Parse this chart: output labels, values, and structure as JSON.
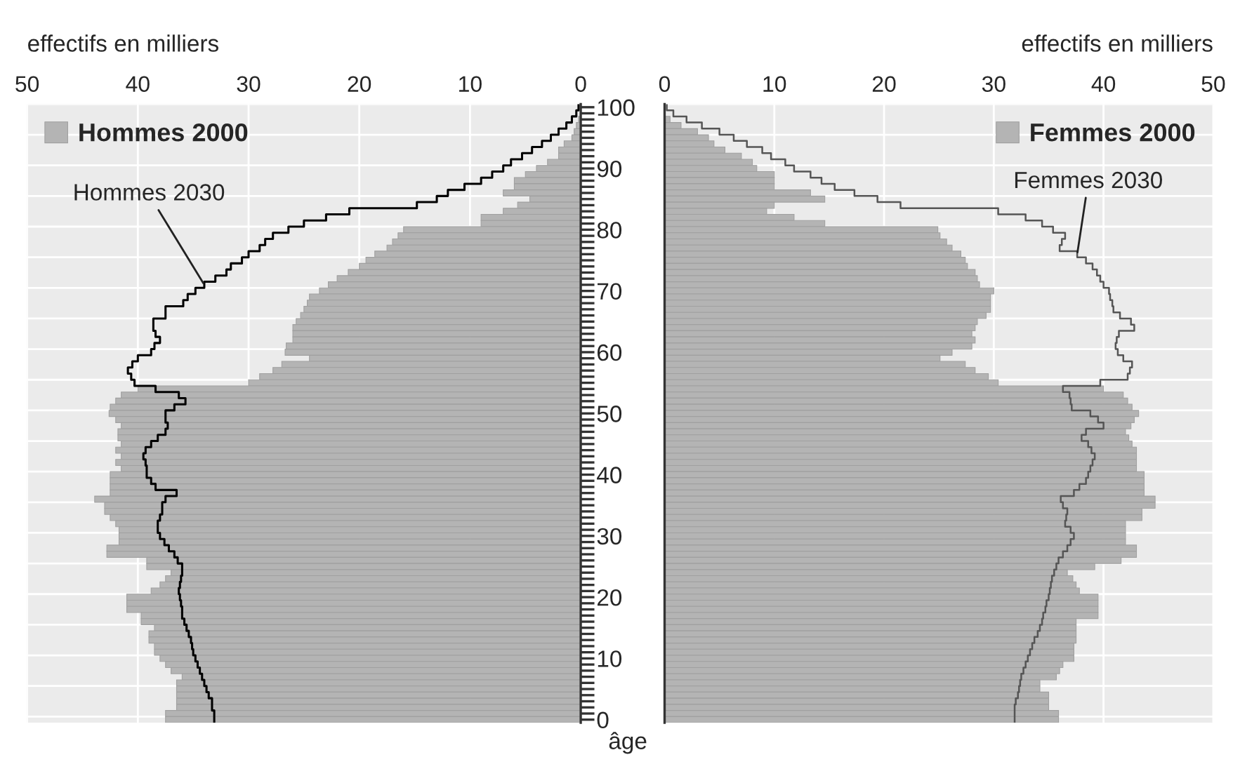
{
  "chart_data": [
    {
      "type": "bar",
      "orientation": "horizontal",
      "xlabel": "effectifs en milliers",
      "ylabel": "âge",
      "categories": [
        "100",
        null,
        null,
        null,
        null,
        null,
        null,
        null,
        null,
        null,
        "90",
        null,
        null,
        null,
        null,
        null,
        null,
        null,
        null,
        null,
        "80",
        null,
        null,
        null,
        null,
        null,
        null,
        null,
        null,
        null,
        "70",
        null,
        null,
        null,
        null,
        null,
        null,
        null,
        null,
        null,
        "60",
        null,
        null,
        null,
        null,
        null,
        null,
        null,
        null,
        null,
        "50",
        null,
        null,
        null,
        null,
        null,
        null,
        null,
        null,
        null,
        "40",
        null,
        null,
        null,
        null,
        null,
        null,
        null,
        null,
        null,
        "30",
        null,
        null,
        null,
        null,
        null,
        null,
        null,
        null,
        null,
        "20",
        null,
        null,
        null,
        null,
        null,
        null,
        null,
        null,
        null,
        "10",
        null,
        null,
        null,
        null,
        null,
        null,
        null,
        null,
        null,
        "0"
      ],
      "series": [
        {
          "name": "Hommes 2000",
          "type": "bar",
          "color": "#b4b4b4",
          "values": [
            null,
            null,
            0.2,
            0.4,
            0.6,
            0.8,
            1.5,
            2,
            2,
            3,
            4,
            5,
            6,
            6,
            7,
            4.6,
            5.7,
            7,
            9,
            9,
            16,
            16.5,
            17,
            17.5,
            18.6,
            19.4,
            20,
            21,
            22,
            22.8,
            23.6,
            24.5,
            24.7,
            25,
            25.3,
            25.7,
            26,
            26,
            26,
            26.6,
            26.7,
            24.5,
            27,
            27.8,
            29,
            30,
            40,
            41.5,
            42,
            42.5,
            42.6,
            42,
            41.5,
            41.8,
            41.8,
            41.5,
            42,
            41.5,
            42,
            41.5,
            42.5,
            42.5,
            42.5,
            42.5,
            43.9,
            43,
            43,
            42.5,
            42,
            41.7,
            41.7,
            41.7,
            42.8,
            42.8,
            39.2,
            39.2,
            37,
            37.5,
            38,
            38.8,
            41,
            41,
            41,
            39.7,
            39.7,
            38.5,
            39,
            39,
            38.5,
            38.5,
            38,
            37.5,
            37,
            36,
            36.5,
            36.5,
            36.5,
            36.5,
            36.5,
            37.5,
            37.5
          ]
        },
        {
          "name": "Hommes 2030",
          "type": "step",
          "color": "#000000",
          "values": [
            0.2,
            0.4,
            0.8,
            1.3,
            2,
            2.7,
            3.5,
            4.4,
            5.3,
            6.3,
            7,
            8,
            9,
            10.5,
            12,
            13,
            14.8,
            20.9,
            23,
            25,
            26.4,
            27.8,
            28.5,
            29,
            30,
            30.6,
            31.6,
            32,
            33,
            34,
            34.8,
            35.5,
            35.9,
            37.5,
            37.5,
            38.6,
            38.6,
            38.4,
            38,
            38.5,
            38.8,
            40,
            40.5,
            40.9,
            40.6,
            40.3,
            38.4,
            36.3,
            35.7,
            36.7,
            37.5,
            37.5,
            37.3,
            37.5,
            38.2,
            38.8,
            39.3,
            39.5,
            39.3,
            39.2,
            39.2,
            38.8,
            38.4,
            36.5,
            37.5,
            37.8,
            37.8,
            38,
            38.2,
            38.2,
            38,
            37.6,
            37.2,
            36.7,
            36.4,
            36,
            36,
            36.1,
            36.2,
            36.3,
            36.2,
            36.1,
            36,
            36,
            35.8,
            35.6,
            35.4,
            35.2,
            35.1,
            35,
            34.8,
            34.6,
            34.4,
            34.2,
            34,
            33.8,
            33.6,
            33.3,
            33.3,
            33.1,
            33.1
          ]
        }
      ],
      "xlim": [
        50,
        0
      ],
      "xticks": [
        50,
        40,
        30,
        20,
        10,
        0
      ],
      "grid": true,
      "legend": "top left"
    },
    {
      "type": "bar",
      "orientation": "horizontal",
      "xlabel": "effectifs en milliers",
      "categories": [
        "100",
        null,
        null,
        null,
        null,
        null,
        null,
        null,
        null,
        null,
        "90",
        null,
        null,
        null,
        null,
        null,
        null,
        null,
        null,
        null,
        "80",
        null,
        null,
        null,
        null,
        null,
        null,
        null,
        null,
        null,
        "70",
        null,
        null,
        null,
        null,
        null,
        null,
        null,
        null,
        null,
        "60",
        null,
        null,
        null,
        null,
        null,
        null,
        null,
        null,
        null,
        "50",
        null,
        null,
        null,
        null,
        null,
        null,
        null,
        null,
        null,
        "40",
        null,
        null,
        null,
        null,
        null,
        null,
        null,
        null,
        null,
        "30",
        null,
        null,
        null,
        null,
        null,
        null,
        null,
        null,
        null,
        "20",
        null,
        null,
        null,
        null,
        null,
        null,
        null,
        null,
        null,
        "10",
        null,
        null,
        null,
        null,
        null,
        null,
        null,
        null,
        null,
        "0"
      ],
      "series": [
        {
          "name": "Femmes 2000",
          "type": "bar",
          "color": "#b4b4b4",
          "values": [
            null,
            null,
            0.5,
            1.5,
            3,
            4,
            4.5,
            5.5,
            7,
            8,
            8.4,
            10,
            10,
            10,
            13.3,
            14.6,
            10,
            9.3,
            11.8,
            14.6,
            24.9,
            25.1,
            25.7,
            26.2,
            27,
            27.4,
            27.6,
            28.3,
            28.5,
            28.7,
            30,
            29.7,
            29.7,
            29.7,
            29.3,
            28.5,
            28.3,
            28,
            28.3,
            28,
            26.2,
            25.1,
            27.4,
            28.3,
            29.5,
            30.4,
            40,
            41.8,
            42.2,
            42.6,
            43.2,
            42.8,
            42.5,
            42,
            42.3,
            42.6,
            43,
            43,
            43,
            43,
            43.7,
            43.7,
            43.7,
            43.7,
            44.7,
            44.7,
            43.5,
            43.5,
            42,
            42,
            42,
            42,
            43,
            43,
            41.6,
            39.2,
            36.7,
            37.2,
            37.5,
            37.8,
            39.5,
            39.5,
            39.5,
            39.5,
            37.5,
            37.5,
            37.5,
            37.5,
            37.3,
            37.3,
            37.3,
            36.3,
            36,
            35.7,
            34.2,
            34.2,
            35,
            35,
            35,
            35.9,
            35.9
          ]
        },
        {
          "name": "Femmes 2030",
          "type": "step",
          "color": "#555555",
          "values": [
            0.2,
            0.8,
            2,
            3.4,
            5,
            6.3,
            7.5,
            8.9,
            9.7,
            11,
            11.8,
            13.3,
            14.3,
            15.5,
            17.3,
            19.4,
            21.5,
            30.4,
            32.9,
            34.4,
            35.4,
            36.5,
            36.2,
            36,
            37.6,
            38.4,
            39,
            39.4,
            39.7,
            40,
            40.5,
            40.6,
            40.8,
            40.9,
            41.5,
            42.5,
            42.8,
            41.4,
            41.2,
            41.1,
            41.3,
            41.8,
            42.6,
            42.4,
            42.2,
            39.7,
            36.3,
            36.9,
            37,
            37.1,
            38.8,
            39.5,
            40,
            38.4,
            38,
            38.6,
            38.9,
            39.2,
            39,
            38.8,
            38.6,
            38.4,
            37.8,
            37.3,
            36.1,
            36.3,
            36.7,
            36.6,
            36.5,
            37,
            37.3,
            37,
            36.7,
            36.3,
            35.9,
            35.7,
            35.5,
            35.3,
            35.2,
            35.1,
            35,
            34.8,
            34.7,
            34.5,
            34.4,
            34.2,
            34,
            33.7,
            33.5,
            33.3,
            33.1,
            32.9,
            32.7,
            32.5,
            32.4,
            32.3,
            32.2,
            32,
            31.9,
            31.9,
            31.9
          ]
        }
      ],
      "xlim": [
        0,
        50
      ],
      "xticks": [
        0,
        10,
        20,
        30,
        40,
        50
      ],
      "tick_labels": "x",
      "grid": true,
      "legend": "top right"
    }
  ]
}
